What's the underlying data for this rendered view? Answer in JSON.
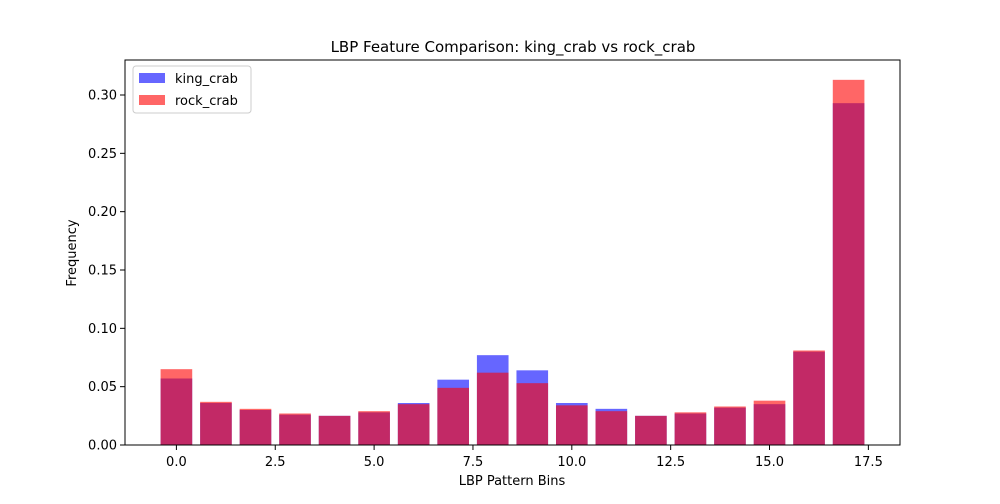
{
  "chart_data": {
    "type": "bar",
    "title": "LBP Feature Comparison: king_crab vs rock_crab",
    "xlabel": "LBP Pattern Bins",
    "ylabel": "Frequency",
    "x": [
      0,
      1,
      2,
      3,
      4,
      5,
      6,
      7,
      8,
      9,
      10,
      11,
      12,
      13,
      14,
      15,
      16,
      17
    ],
    "xlim": [
      -1.3,
      18.3
    ],
    "ylim": [
      0,
      0.33
    ],
    "xticks": [
      0.0,
      2.5,
      5.0,
      7.5,
      10.0,
      12.5,
      15.0,
      17.5
    ],
    "xtick_labels": [
      "0.0",
      "2.5",
      "5.0",
      "7.5",
      "10.0",
      "12.5",
      "15.0",
      "17.5"
    ],
    "yticks": [
      0.0,
      0.05,
      0.1,
      0.15,
      0.2,
      0.25,
      0.3
    ],
    "ytick_labels": [
      "0.00",
      "0.05",
      "0.10",
      "0.15",
      "0.20",
      "0.25",
      "0.30"
    ],
    "grid": false,
    "legend_position": "top-left",
    "series": [
      {
        "name": "king_crab",
        "color": "#0000ff",
        "alpha": 0.6,
        "values": [
          0.057,
          0.036,
          0.03,
          0.026,
          0.025,
          0.028,
          0.036,
          0.056,
          0.077,
          0.064,
          0.036,
          0.031,
          0.025,
          0.027,
          0.032,
          0.035,
          0.08,
          0.293
        ]
      },
      {
        "name": "rock_crab",
        "color": "#ff0000",
        "alpha": 0.6,
        "values": [
          0.065,
          0.037,
          0.031,
          0.027,
          0.025,
          0.029,
          0.035,
          0.049,
          0.062,
          0.053,
          0.034,
          0.029,
          0.025,
          0.028,
          0.033,
          0.038,
          0.081,
          0.313
        ]
      }
    ]
  }
}
